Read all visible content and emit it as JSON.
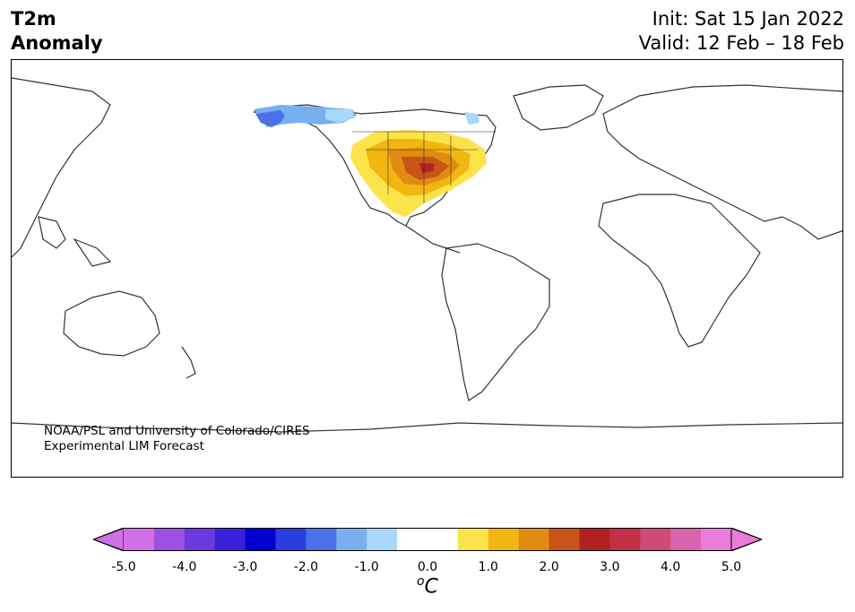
{
  "title": {
    "line1": "T2m",
    "line2": "Anomaly"
  },
  "dates": {
    "init": "Init: Sat 15 Jan 2022",
    "valid": "Valid: 12 Feb – 18 Feb"
  },
  "credit": {
    "line1": "NOAA/PSL and University of Colorado/CIRES",
    "line2": "Experimental LIM Forecast"
  },
  "colorbar": {
    "ticks": [
      "-5.0",
      "-4.0",
      "-3.0",
      "-2.0",
      "-1.0",
      "0.0",
      "1.0",
      "2.0",
      "3.0",
      "4.0",
      "5.0"
    ],
    "unit_sup": "o",
    "unit": "C",
    "colors": [
      "#d070e8",
      "#9b52e2",
      "#6a3ae0",
      "#3a20d8",
      "#0000d0",
      "#2a3ee0",
      "#4a72e8",
      "#78aff0",
      "#a8d8fa",
      "#ffffff",
      "#ffffff",
      "#fde34a",
      "#f2b612",
      "#e08b12",
      "#c85418",
      "#b02222",
      "#c23048",
      "#cf4a74",
      "#da64ac",
      "#e87cd8"
    ],
    "extend_low": "#d070e8",
    "extend_high": "#e87cd8"
  },
  "map": {
    "land_outline_color": "#333333"
  }
}
